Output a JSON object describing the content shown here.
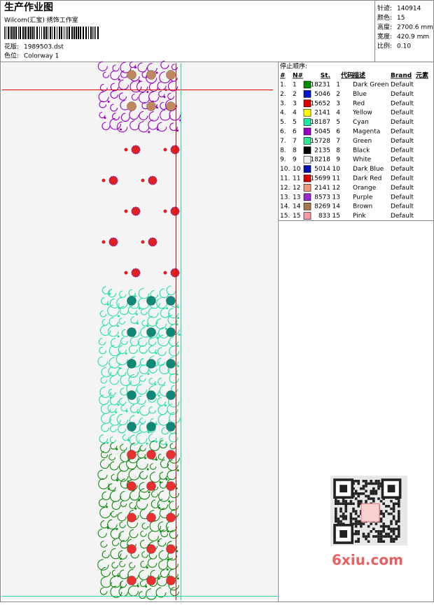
{
  "header": {
    "title": "生产作业图",
    "subtitle": "Wilcom(汇宝) 绣饰工作室",
    "design_label": "花版:",
    "design": "1989503.dst",
    "colorway_label": "色位:",
    "colorway": "Colorway 1"
  },
  "info": [
    {
      "label": "针迹:",
      "value": "140914"
    },
    {
      "label": "颜色:",
      "value": "15"
    },
    {
      "label": "高度:",
      "value": "2700.6 mm"
    },
    {
      "label": "宽度:",
      "value": "420.9 mm"
    },
    {
      "label": "比例:",
      "value": "0.10"
    }
  ],
  "stop_sequence": {
    "title": "停止顺序:",
    "columns": [
      "#",
      "N#",
      "St.",
      "代码",
      "描述",
      "Brand",
      "元素"
    ],
    "rows": [
      {
        "index": "1.",
        "n": "1",
        "stitches": "18231",
        "code": "1",
        "color": "#008a00",
        "description": "Dark Green",
        "brand": "Default"
      },
      {
        "index": "2.",
        "n": "2",
        "stitches": "5046",
        "code": "2",
        "color": "#0018c8",
        "description": "Blue",
        "brand": "Default"
      },
      {
        "index": "3.",
        "n": "3",
        "stitches": "15652",
        "code": "3",
        "color": "#e00000",
        "description": "Red",
        "brand": "Default"
      },
      {
        "index": "4.",
        "n": "4",
        "stitches": "2141",
        "code": "4",
        "color": "#ffff00",
        "description": "Yellow",
        "brand": "Default"
      },
      {
        "index": "5.",
        "n": "5",
        "stitches": "18187",
        "code": "5",
        "color": "#20e8a8",
        "description": "Cyan",
        "brand": "Default"
      },
      {
        "index": "6.",
        "n": "6",
        "stitches": "5045",
        "code": "6",
        "color": "#9800c8",
        "description": "Magenta",
        "brand": "Default"
      },
      {
        "index": "7.",
        "n": "7",
        "stitches": "15728",
        "code": "7",
        "color": "#30e898",
        "description": "Green",
        "brand": "Default"
      },
      {
        "index": "8.",
        "n": "8",
        "stitches": "2135",
        "code": "8",
        "color": "#000000",
        "description": "Black",
        "brand": "Default"
      },
      {
        "index": "9.",
        "n": "9",
        "stitches": "18218",
        "code": "9",
        "color": "#f0f0f0",
        "description": "White",
        "brand": "Default"
      },
      {
        "index": "10.",
        "n": "10",
        "stitches": "5014",
        "code": "10",
        "color": "#0010b0",
        "description": "Dark Blue",
        "brand": "Default"
      },
      {
        "index": "11.",
        "n": "11",
        "stitches": "15699",
        "code": "11",
        "color": "#d80000",
        "description": "Dark Red",
        "brand": "Default"
      },
      {
        "index": "12.",
        "n": "12",
        "stitches": "2141",
        "code": "12",
        "color": "#f09878",
        "description": "Orange",
        "brand": "Default"
      },
      {
        "index": "13.",
        "n": "13",
        "stitches": "8573",
        "code": "13",
        "color": "#9828c8",
        "description": "Purple",
        "brand": "Default"
      },
      {
        "index": "14.",
        "n": "14",
        "stitches": "8269",
        "code": "14",
        "color": "#a87850",
        "description": "Brown",
        "brand": "Default"
      },
      {
        "index": "15.",
        "n": "15",
        "stitches": "833",
        "code": "15",
        "color": "#f898a8",
        "description": "Pink",
        "brand": "Default"
      }
    ]
  },
  "watermark": "6xiu.com"
}
